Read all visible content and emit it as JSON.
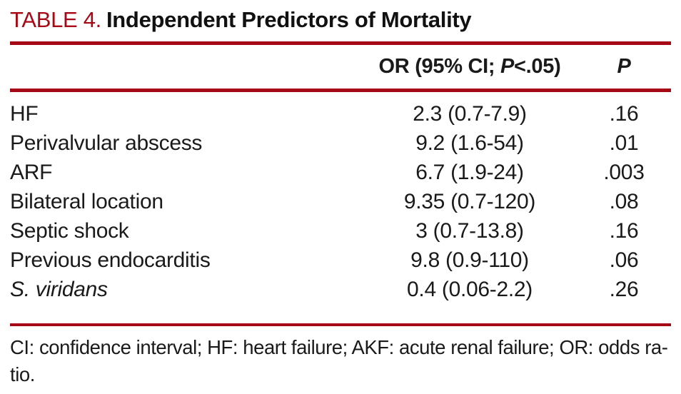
{
  "colors": {
    "accent_red": "#A60915",
    "ink": "#1A1A1A"
  },
  "title": {
    "label": "TABLE 4.",
    "text": "Independent Predictors of Mortality"
  },
  "header": {
    "or_pre": "OR (95% CI; ",
    "or_p": "P",
    "or_post": "<.05)",
    "p_col": "P"
  },
  "rows": [
    {
      "label": "HF",
      "or_ci": "2.3 (0.7-7.9)",
      "p": ".16"
    },
    {
      "label": "Perivalvular abscess",
      "or_ci": "9.2 (1.6-54)",
      "p": ".01"
    },
    {
      "label": "ARF",
      "or_ci": "6.7 (1.9-24)",
      "p": ".003"
    },
    {
      "label": "Bilateral location",
      "or_ci": "9.35 (0.7-120)",
      "p": ".08"
    },
    {
      "label": "Septic shock",
      "or_ci": "3 (0.7-13.8)",
      "p": ".16"
    },
    {
      "label": "Previous endocarditis",
      "or_ci": "9.8 (0.9-110)",
      "p": ".06"
    },
    {
      "label": "S. viridans",
      "or_ci": "0.4 (0.06-2.2)",
      "p": ".26"
    }
  ],
  "footnote": {
    "line1": "CI: confidence interval; HF: heart failure; AKF: acute renal failure; OR: odds ra-",
    "line2": "tio."
  }
}
